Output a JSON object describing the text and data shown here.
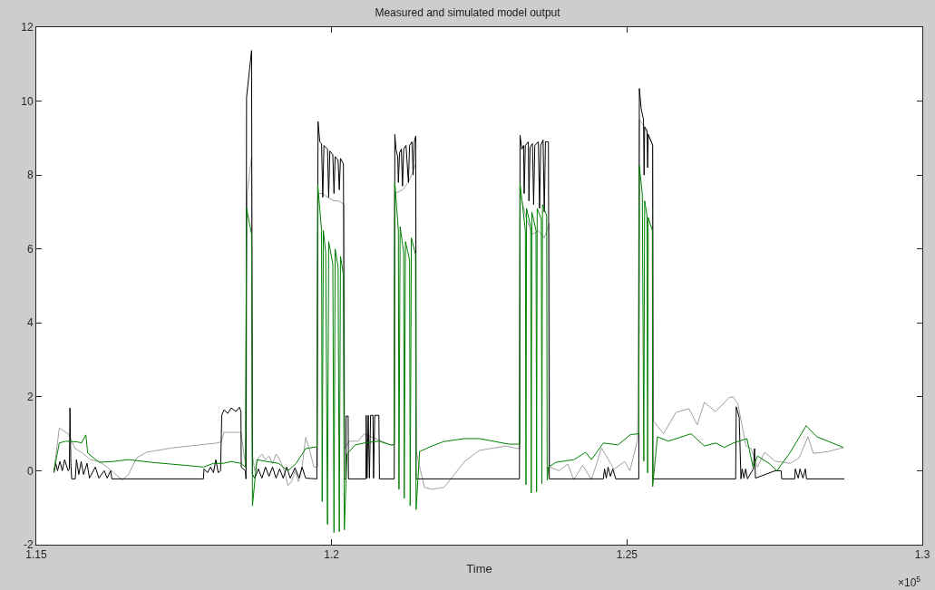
{
  "chart_data": {
    "type": "line",
    "title": "Measured and simulated model output",
    "xlabel": "Time",
    "annotations": [
      "×10$^{5}$"
    ],
    "xlim": [
      1.15,
      1.3
    ],
    "ylim": [
      -2,
      12
    ],
    "xticks": [
      1.15,
      1.2,
      1.25,
      1.3
    ],
    "yticks": [
      -2,
      0,
      2,
      4,
      6,
      8,
      10,
      12
    ],
    "grid": false,
    "line_style": "solid",
    "series": [
      {
        "color": "#a0a0a0",
        "x": [
          1.153,
          1.1539,
          1.1554,
          1.156,
          1.1566,
          1.15765,
          1.15915,
          1.16065,
          1.162,
          1.16455,
          1.1656,
          1.167,
          1.1686,
          1.1731,
          1.1806,
          1.1813,
          1.1818,
          1.18465,
          1.1853,
          1.18555,
          1.1857,
          1.18645,
          1.1866,
          1.187,
          1.1876,
          1.1882,
          1.1888,
          1.1894,
          1.19,
          1.1906,
          1.1912,
          1.192,
          1.1926,
          1.1932,
          1.1938,
          1.1944,
          1.195,
          1.1956,
          1.1962,
          1.197,
          1.1976,
          1.1977,
          1.1985,
          1.1993,
          1.2004,
          1.2012,
          1.20215,
          1.2022,
          1.203,
          1.2045,
          1.2055,
          1.207,
          1.2085,
          1.21,
          1.2106,
          1.2107,
          1.212,
          1.213,
          1.21425,
          1.21435,
          1.2157,
          1.217,
          1.219,
          1.22,
          1.2225,
          1.225,
          1.2295,
          1.2315,
          1.23185,
          1.2319,
          1.233,
          1.234,
          1.235,
          1.236,
          1.23685,
          1.2369,
          1.2385,
          1.24,
          1.241,
          1.2425,
          1.244,
          1.2457,
          1.2478,
          1.2496,
          1.2505,
          1.2518,
          1.2521,
          1.253,
          1.25435,
          1.2545,
          1.2562,
          1.2583,
          1.2605,
          1.2619,
          1.2631,
          1.265,
          1.2673,
          1.268,
          1.2688,
          1.27015,
          1.271,
          1.2721,
          1.2733,
          1.2751,
          1.27765,
          1.27915,
          1.28065,
          1.28155,
          1.2841,
          1.28665
        ],
        "values": [
          0,
          1.16,
          1.0,
          0.8,
          0.6,
          0.5,
          0.3,
          0.25,
          0.1,
          -0.25,
          -0.1,
          0.35,
          0.5,
          0.62,
          0.75,
          0.78,
          1.04,
          1.04,
          0.3,
          0,
          7.5,
          8.5,
          0.4,
          0.0,
          0.35,
          0.45,
          0.3,
          0.4,
          0.2,
          0.45,
          0.3,
          0.0,
          -0.4,
          -0.3,
          0.0,
          -0.3,
          0.1,
          0.9,
          0.6,
          0.1,
          0.1,
          7.5,
          7.5,
          7.4,
          7.3,
          7.3,
          7.2,
          0.6,
          0.8,
          0.8,
          1.0,
          0.9,
          0.8,
          0.7,
          0.7,
          7.5,
          7.6,
          7.8,
          8.3,
          0.5,
          -0.45,
          -0.5,
          -0.45,
          -0.26,
          0.25,
          0.55,
          0.67,
          0.6,
          0.6,
          7.5,
          6.8,
          6.4,
          6.5,
          6.3,
          6.7,
          0.1,
          0.0,
          0.18,
          -0.24,
          0.15,
          -0.24,
          0.62,
          0.04,
          0.25,
          0.0,
          0.84,
          9.5,
          9.3,
          8.8,
          1.34,
          1.0,
          1.58,
          1.68,
          1.24,
          1.85,
          1.6,
          1.98,
          2.0,
          1.8,
          0.67,
          0.6,
          0.1,
          0.5,
          0.26,
          0.2,
          0.35,
          0.92,
          0.47,
          0.52,
          0.63
        ]
      },
      {
        "color": "#000000",
        "x": [
          1.153,
          1.1533,
          1.1536,
          1.154,
          1.1544,
          1.1548,
          1.1554,
          1.1556,
          1.1557,
          1.15585,
          1.156,
          1.1566,
          1.1568,
          1.1572,
          1.1576,
          1.158,
          1.1586,
          1.159,
          1.16,
          1.1606,
          1.1615,
          1.162,
          1.1626,
          1.1628,
          1.1783,
          1.1784,
          1.179,
          1.1795,
          1.18,
          1.1804,
          1.1808,
          1.1812,
          1.1814,
          1.1818,
          1.1824,
          1.183,
          1.1838,
          1.1844,
          1.18465,
          1.1847,
          1.1854,
          1.1855,
          1.1856,
          1.18645,
          1.1866,
          1.187,
          1.1876,
          1.1882,
          1.1888,
          1.1894,
          1.19,
          1.1906,
          1.1912,
          1.1918,
          1.1924,
          1.193,
          1.1938,
          1.1945,
          1.195,
          1.1956,
          1.1975,
          1.1977,
          1.198,
          1.1983,
          1.1985,
          1.1987,
          1.1993,
          1.1995,
          1.1997,
          1.2002,
          1.2004,
          1.2006,
          1.2011,
          1.2013,
          1.2015,
          1.202,
          1.20215,
          1.2024,
          1.20245,
          1.2028,
          1.20285,
          1.2058,
          1.20585,
          1.206,
          1.2062,
          1.2064,
          1.2066,
          1.207,
          1.2071,
          1.2073,
          1.208,
          1.2081,
          1.2106,
          1.2107,
          1.2109,
          1.2112,
          1.2113,
          1.2115,
          1.2118,
          1.212,
          1.2122,
          1.2126,
          1.213,
          1.2132,
          1.2136,
          1.2138,
          1.214,
          1.21425,
          1.2143,
          1.2318,
          1.2319,
          1.2322,
          1.2325,
          1.2326,
          1.2328,
          1.2333,
          1.2334,
          1.2336,
          1.234,
          1.2342,
          1.2344,
          1.235,
          1.2352,
          1.2354,
          1.2358,
          1.236,
          1.2362,
          1.2367,
          1.23685,
          1.246,
          1.2462,
          1.2465,
          1.2468,
          1.2472,
          1.2476,
          1.2481,
          1.252,
          1.2521,
          1.2524,
          1.2528,
          1.2529,
          1.253,
          1.2534,
          1.2535,
          1.2536,
          1.2542,
          1.25435,
          1.2544,
          1.2684,
          1.2685,
          1.269,
          1.2693,
          1.2695,
          1.2698,
          1.2701,
          1.2704,
          1.2714,
          1.2716,
          1.27175,
          1.2751,
          1.2761,
          1.2762,
          1.2784,
          1.2785,
          1.279,
          1.2793,
          1.2798,
          1.2802,
          1.2804,
          1.2868
        ],
        "values": [
          -0.05,
          0.2,
          0,
          0.25,
          0,
          0.3,
          0,
          0.05,
          1.7,
          0.2,
          -0.22,
          -0.22,
          0.3,
          -0.1,
          0.25,
          -0.1,
          0.2,
          -0.2,
          0.1,
          -0.2,
          0,
          -0.2,
          0.0,
          -0.22,
          -0.22,
          0.05,
          -0.05,
          0.1,
          -0.05,
          0.3,
          -0.05,
          0,
          1.5,
          1.65,
          1.55,
          1.7,
          1.6,
          1.72,
          1.6,
          0.1,
          0.0,
          -0.22,
          10.1,
          11.37,
          -0.1,
          -0.2,
          0.05,
          -0.2,
          0.1,
          -0.15,
          0.1,
          -0.2,
          0.05,
          -0.2,
          0.1,
          -0.2,
          0.08,
          -0.2,
          0.1,
          -0.2,
          -0.22,
          9.45,
          8.9,
          8.85,
          7.4,
          8.8,
          8.7,
          7.4,
          8.65,
          8.55,
          7.5,
          8.5,
          8.4,
          7.6,
          8.45,
          8.3,
          -0.22,
          -0.22,
          1.48,
          1.48,
          -0.22,
          -0.22,
          1.5,
          -0.2,
          1.5,
          -0.2,
          1.5,
          1.5,
          -0.2,
          1.5,
          1.5,
          -0.22,
          -0.22,
          9.1,
          8.7,
          8.47,
          7.8,
          8.6,
          8.7,
          7.7,
          8.7,
          8.8,
          7.8,
          8.8,
          8.9,
          8.0,
          8.9,
          9.06,
          -0.22,
          -0.22,
          9.08,
          8.7,
          8.8,
          7.5,
          8.8,
          8.9,
          7.3,
          8.75,
          8.85,
          7.2,
          8.8,
          8.9,
          7.1,
          8.8,
          8.95,
          7.0,
          8.9,
          8.9,
          -0.22,
          -0.22,
          0.05,
          -0.2,
          0.1,
          -0.15,
          0.05,
          -0.22,
          -0.22,
          10.34,
          9.8,
          9.5,
          8.0,
          9.3,
          9.2,
          8.2,
          9.1,
          8.87,
          8.8,
          -0.22,
          -0.22,
          1.73,
          1.45,
          -0.22,
          0.05,
          -0.2,
          0.05,
          -0.22,
          0.05,
          0.6,
          -0.2,
          0.0,
          0.0,
          -0.22,
          -0.22,
          0.05,
          -0.2,
          0.05,
          -0.2,
          0.05,
          -0.22,
          -0.22
        ]
      },
      {
        "color": "#008000",
        "x": [
          1.153,
          1.1539,
          1.155,
          1.157,
          1.15765,
          1.1584,
          1.1587,
          1.16065,
          1.163,
          1.1656,
          1.17,
          1.175,
          1.17835,
          1.18,
          1.18165,
          1.183,
          1.18465,
          1.1854,
          1.1856,
          1.18645,
          1.1866,
          1.18735,
          1.189,
          1.191,
          1.1926,
          1.194,
          1.1956,
          1.19755,
          1.19765,
          1.1983,
          1.1984,
          1.1986,
          1.199,
          1.1993,
          1.1995,
          1.2002,
          1.2004,
          1.2006,
          1.2011,
          1.2013,
          1.2015,
          1.202,
          1.20215,
          1.2026,
          1.204,
          1.2058,
          1.208,
          1.21,
          1.2106,
          1.2107,
          1.2113,
          1.2114,
          1.2116,
          1.2122,
          1.2123,
          1.2125,
          1.2132,
          1.2133,
          1.2135,
          1.2142,
          1.2143,
          1.2149,
          1.217,
          1.219,
          1.2225,
          1.225,
          1.23,
          1.23185,
          1.2319,
          1.2328,
          1.2329,
          1.233,
          1.2337,
          1.2338,
          1.2339,
          1.2346,
          1.2347,
          1.2348,
          1.2355,
          1.2356,
          1.2357,
          1.2364,
          1.2365,
          1.2367,
          1.238,
          1.241,
          1.243,
          1.244,
          1.246,
          1.2485,
          1.2506,
          1.252,
          1.2521,
          1.2526,
          1.25285,
          1.253,
          1.2534,
          1.2535,
          1.2536,
          1.2543,
          1.25435,
          1.25515,
          1.257,
          1.26085,
          1.2631,
          1.265,
          1.2665,
          1.268,
          1.2703,
          1.27135,
          1.2721,
          1.27405,
          1.2754,
          1.27765,
          1.28035,
          1.28215,
          1.28665
        ],
        "values": [
          0,
          0.75,
          0.8,
          0.78,
          0.75,
          0.97,
          0.48,
          0.23,
          0.25,
          0.3,
          0.22,
          0.15,
          0.1,
          0.2,
          0.2,
          0.25,
          0.2,
          0.1,
          7.1,
          6.4,
          -0.95,
          0.3,
          0.25,
          0.2,
          0.0,
          0.2,
          0.6,
          0.65,
          7.75,
          6.5,
          -0.83,
          6.5,
          5.9,
          -1.45,
          6.2,
          5.6,
          -1.67,
          6.0,
          5.5,
          -1.65,
          5.8,
          5.3,
          -1.6,
          0.45,
          0.7,
          0.76,
          0.8,
          0.7,
          0.7,
          7.8,
          6.5,
          -0.5,
          6.6,
          5.9,
          -0.75,
          6.2,
          5.7,
          -0.95,
          6.3,
          5.86,
          -1.05,
          0.52,
          0.67,
          0.79,
          0.87,
          0.87,
          0.72,
          0.72,
          7.77,
          6.5,
          -0.38,
          7.1,
          6.6,
          -0.6,
          7.0,
          6.5,
          -0.57,
          7.1,
          6.8,
          -0.35,
          7.2,
          6.9,
          -0.25,
          0.1,
          0.23,
          0.3,
          0.5,
          0.3,
          0.75,
          0.7,
          0.98,
          1.0,
          8.25,
          7.48,
          0.26,
          7.3,
          6.9,
          -0.06,
          6.85,
          6.5,
          -0.43,
          0.92,
          0.8,
          1.0,
          0.67,
          0.75,
          0.63,
          0.75,
          0.87,
          0.1,
          0.4,
          0.2,
          0.0,
          0.5,
          1.22,
          0.92,
          0.63
        ]
      }
    ]
  }
}
